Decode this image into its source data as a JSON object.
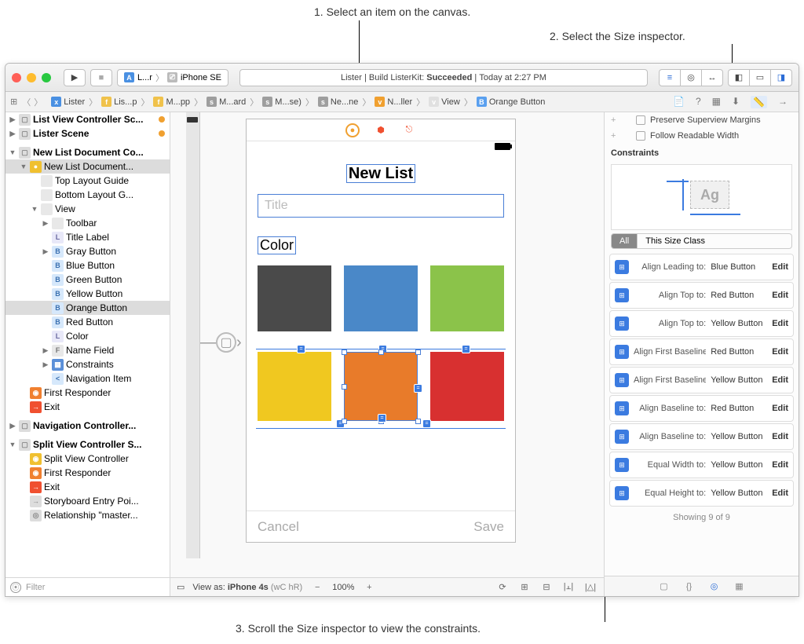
{
  "annotations": {
    "a1": "1. Select an item on the canvas.",
    "a2": "2. Select the Size inspector.",
    "a3": "3. Scroll the Size inspector to view the constraints."
  },
  "traffic": {
    "close": "#ff5f57",
    "min": "#febc2e",
    "max": "#28c840"
  },
  "scheme": {
    "target": "L...r",
    "device": "iPhone SE"
  },
  "status": {
    "project": "Lister",
    "action": "Build ListerKit:",
    "result": "Succeeded",
    "time": "Today at 2:27 PM"
  },
  "jumpbar": [
    {
      "icon": "xc",
      "color": "#4a90e2",
      "label": "Lister"
    },
    {
      "icon": "fd",
      "color": "#f0c24b",
      "label": "Lis...p"
    },
    {
      "icon": "fd",
      "color": "#f0c24b",
      "label": "M...pp"
    },
    {
      "icon": "sb",
      "color": "#9e9e9e",
      "label": "M...ard"
    },
    {
      "icon": "sb",
      "color": "#9e9e9e",
      "label": "M...se)"
    },
    {
      "icon": "sc",
      "color": "#9e9e9e",
      "label": "Ne...ne"
    },
    {
      "icon": "vc",
      "color": "#f0a030",
      "label": "N...ller"
    },
    {
      "icon": "vw",
      "color": "#e0e0e0",
      "label": "View"
    },
    {
      "icon": "B",
      "color": "#5aa0ef",
      "label": "Orange Button"
    }
  ],
  "navigator": {
    "scenes": [
      {
        "label": "List View Controller Sc...",
        "bold": true,
        "dot": "#f0a030",
        "selColor": "#f5f5f5"
      },
      {
        "label": "Lister Scene",
        "bold": true,
        "dot": "#f0a030"
      }
    ],
    "doc": {
      "title": "New List Document Co...",
      "vc": "New List Document...",
      "items": [
        {
          "i": 3,
          "ic": " ",
          "bg": "#e8e8e8",
          "label": "Top Layout Guide"
        },
        {
          "i": 3,
          "ic": " ",
          "bg": "#e8e8e8",
          "label": "Bottom Layout G..."
        }
      ],
      "view": "View",
      "viewItems": [
        {
          "ic": " ",
          "bg": "#e8e8e8",
          "label": "Toolbar",
          "tw": "▶"
        },
        {
          "ic": "L",
          "bg": "#e8e8f8",
          "fg": "#6a6aa0",
          "label": "Title Label"
        },
        {
          "ic": "B",
          "bg": "#d6e8fb",
          "fg": "#3a70b0",
          "label": "Gray Button",
          "tw": "▶"
        },
        {
          "ic": "B",
          "bg": "#d6e8fb",
          "fg": "#3a70b0",
          "label": "Blue Button"
        },
        {
          "ic": "B",
          "bg": "#d6e8fb",
          "fg": "#3a70b0",
          "label": "Green Button"
        },
        {
          "ic": "B",
          "bg": "#d6e8fb",
          "fg": "#3a70b0",
          "label": "Yellow Button"
        },
        {
          "ic": "B",
          "bg": "#d6e8fb",
          "fg": "#3a70b0",
          "label": "Orange Button",
          "sel": true
        },
        {
          "ic": "B",
          "bg": "#d6e8fb",
          "fg": "#3a70b0",
          "label": "Red Button"
        },
        {
          "ic": "L",
          "bg": "#e8e8f8",
          "fg": "#6a6aa0",
          "label": "Color"
        },
        {
          "ic": "F",
          "bg": "#e8e8e8",
          "fg": "#777",
          "label": "Name Field",
          "tw": "▶"
        },
        {
          "ic": "▦",
          "bg": "#5a8fd8",
          "fg": "#fff",
          "label": "Constraints",
          "tw": "▶"
        },
        {
          "ic": "<",
          "bg": "#d6e8fb",
          "fg": "#3a70b0",
          "label": "Navigation Item"
        }
      ],
      "extra": [
        {
          "ic": "◉",
          "bg": "#f08030",
          "fg": "#fff",
          "label": "First Responder"
        },
        {
          "ic": "→",
          "bg": "#f05030",
          "fg": "#fff",
          "label": "Exit"
        }
      ]
    },
    "navc": "Navigation Controller...",
    "split": {
      "title": "Split View Controller S...",
      "items": [
        {
          "ic": "◉",
          "bg": "#f0c030",
          "fg": "#fff",
          "label": "Split View Controller"
        },
        {
          "ic": "◉",
          "bg": "#f08030",
          "fg": "#fff",
          "label": "First Responder"
        },
        {
          "ic": "→",
          "bg": "#f05030",
          "fg": "#fff",
          "label": "Exit"
        },
        {
          "ic": "→",
          "bg": "#ddd",
          "fg": "#888",
          "label": "Storyboard Entry Poi..."
        },
        {
          "ic": "◎",
          "bg": "#ddd",
          "fg": "#888",
          "label": "Relationship \"master..."
        }
      ]
    },
    "filter": "Filter"
  },
  "canvas": {
    "title": "New List",
    "placeholder": "Title",
    "colorLabel": "Color",
    "swatches1": [
      "#4a4a4a",
      "#4a88c8",
      "#8bc34a"
    ],
    "swatches2": [
      "#f0c820",
      "#e87b2a",
      "#d83030"
    ],
    "cancel": "Cancel",
    "save": "Save"
  },
  "editorBottom": {
    "viewAs": "View as: ",
    "device": "iPhone 4s",
    "traits": "(wC hR)",
    "zoom": "100%"
  },
  "inspector": {
    "opt1": "Preserve Superview Margins",
    "opt2": "Follow Readable Width",
    "header": "Constraints",
    "segAll": "All",
    "segThis": "This Size Class",
    "constraints": [
      {
        "desc": "Align Leading to:",
        "tgt": "Blue Button"
      },
      {
        "desc": "Align Top to:",
        "tgt": "Red Button"
      },
      {
        "desc": "Align Top to:",
        "tgt": "Yellow Button"
      },
      {
        "desc": "Align First Baseline to",
        "tgt": "Red Button"
      },
      {
        "desc": "Align First Baseline to",
        "tgt": "Yellow Button"
      },
      {
        "desc": "Align Baseline to:",
        "tgt": "Red Button"
      },
      {
        "desc": "Align Baseline to:",
        "tgt": "Yellow Button"
      },
      {
        "desc": "Equal Width to:",
        "tgt": "Yellow Button"
      },
      {
        "desc": "Equal Height to:",
        "tgt": "Yellow Button"
      }
    ],
    "edit": "Edit",
    "showing": "Showing 9 of 9"
  }
}
